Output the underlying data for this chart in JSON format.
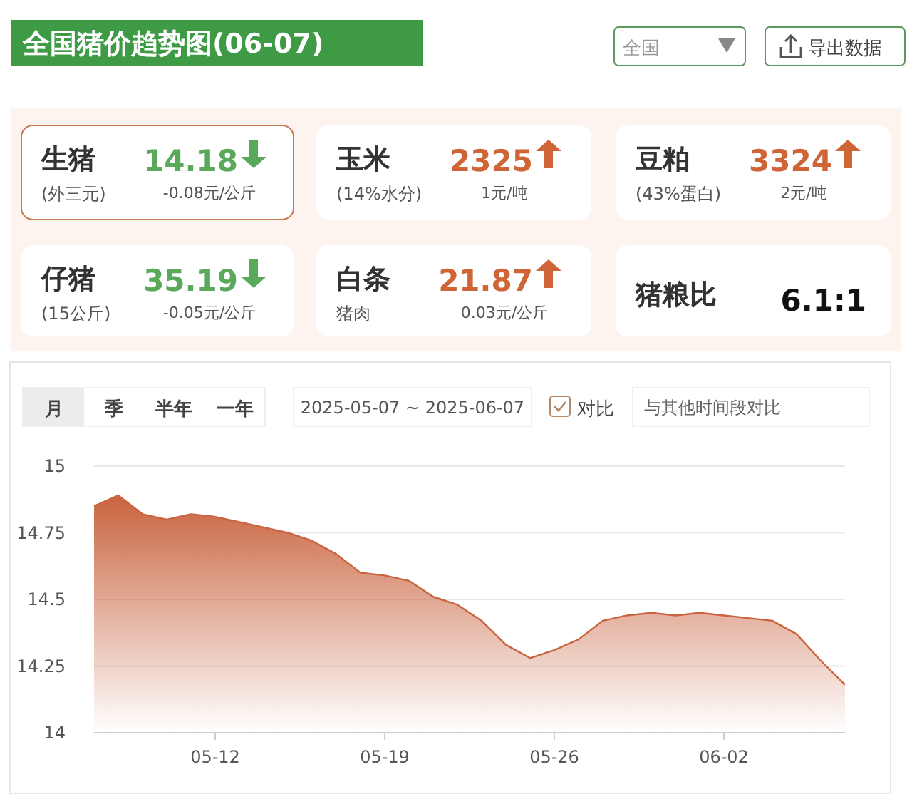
{
  "chart_data": [
    {
      "type": "other",
      "title": "全国猪价趋势图(06-07)",
      "annotations": [
        "全国",
        "导出数据",
        "生猪",
        "(外三元)",
        "14.18",
        "-0.08元/公斤",
        "玉米",
        "(14%水分)",
        "2325",
        "1元/吨",
        "豆粕",
        "(43%蛋白)",
        "3324",
        "2元/吨",
        "仔猪",
        "(15公斤)",
        "35.19",
        "-0.05元/公斤",
        "白条",
        "猪肉",
        "21.87",
        "0.03元/公斤",
        "猪粮比",
        "6.1:1",
        "月",
        "季",
        "半年",
        "一年",
        "2025-05-07 ~ 2025-06-07",
        "对比",
        "与其他时间段对比"
      ]
    },
    {
      "type": "area",
      "color": "#c9643f",
      "grid": "y",
      "x": [
        "2025-05-07",
        "2025-05-08",
        "2025-05-09",
        "2025-05-10",
        "2025-05-11",
        "2025-05-12",
        "2025-05-13",
        "2025-05-14",
        "2025-05-15",
        "2025-05-16",
        "2025-05-17",
        "2025-05-18",
        "2025-05-19",
        "2025-05-20",
        "2025-05-21",
        "2025-05-22",
        "2025-05-23",
        "2025-05-24",
        "2025-05-25",
        "2025-05-26",
        "2025-05-27",
        "2025-05-28",
        "2025-05-29",
        "2025-05-30",
        "2025-05-31",
        "2025-06-01",
        "2025-06-02",
        "2025-06-03",
        "2025-06-04",
        "2025-06-05",
        "2025-06-06",
        "2025-06-07"
      ],
      "values": [
        14.85,
        14.89,
        14.82,
        14.8,
        14.82,
        14.81,
        14.79,
        14.77,
        14.75,
        14.72,
        14.67,
        14.6,
        14.59,
        14.57,
        14.51,
        14.48,
        14.42,
        14.33,
        14.28,
        14.31,
        14.35,
        14.42,
        14.44,
        14.45,
        14.44,
        14.45,
        14.44,
        14.43,
        14.42,
        14.37,
        14.27,
        14.18
      ],
      "xlim": [
        "2025-05-07",
        "2025-06-07"
      ],
      "xticks": [
        {
          "value": "2025-05-12",
          "label": "05-12"
        },
        {
          "value": "2025-05-19",
          "label": "05-19"
        },
        {
          "value": "2025-05-26",
          "label": "05-26"
        },
        {
          "value": "2025-06-02",
          "label": "06-02"
        }
      ],
      "ylim": [
        14,
        15
      ],
      "yticks": [
        14,
        14.25,
        14.5,
        14.75,
        15
      ]
    }
  ]
}
